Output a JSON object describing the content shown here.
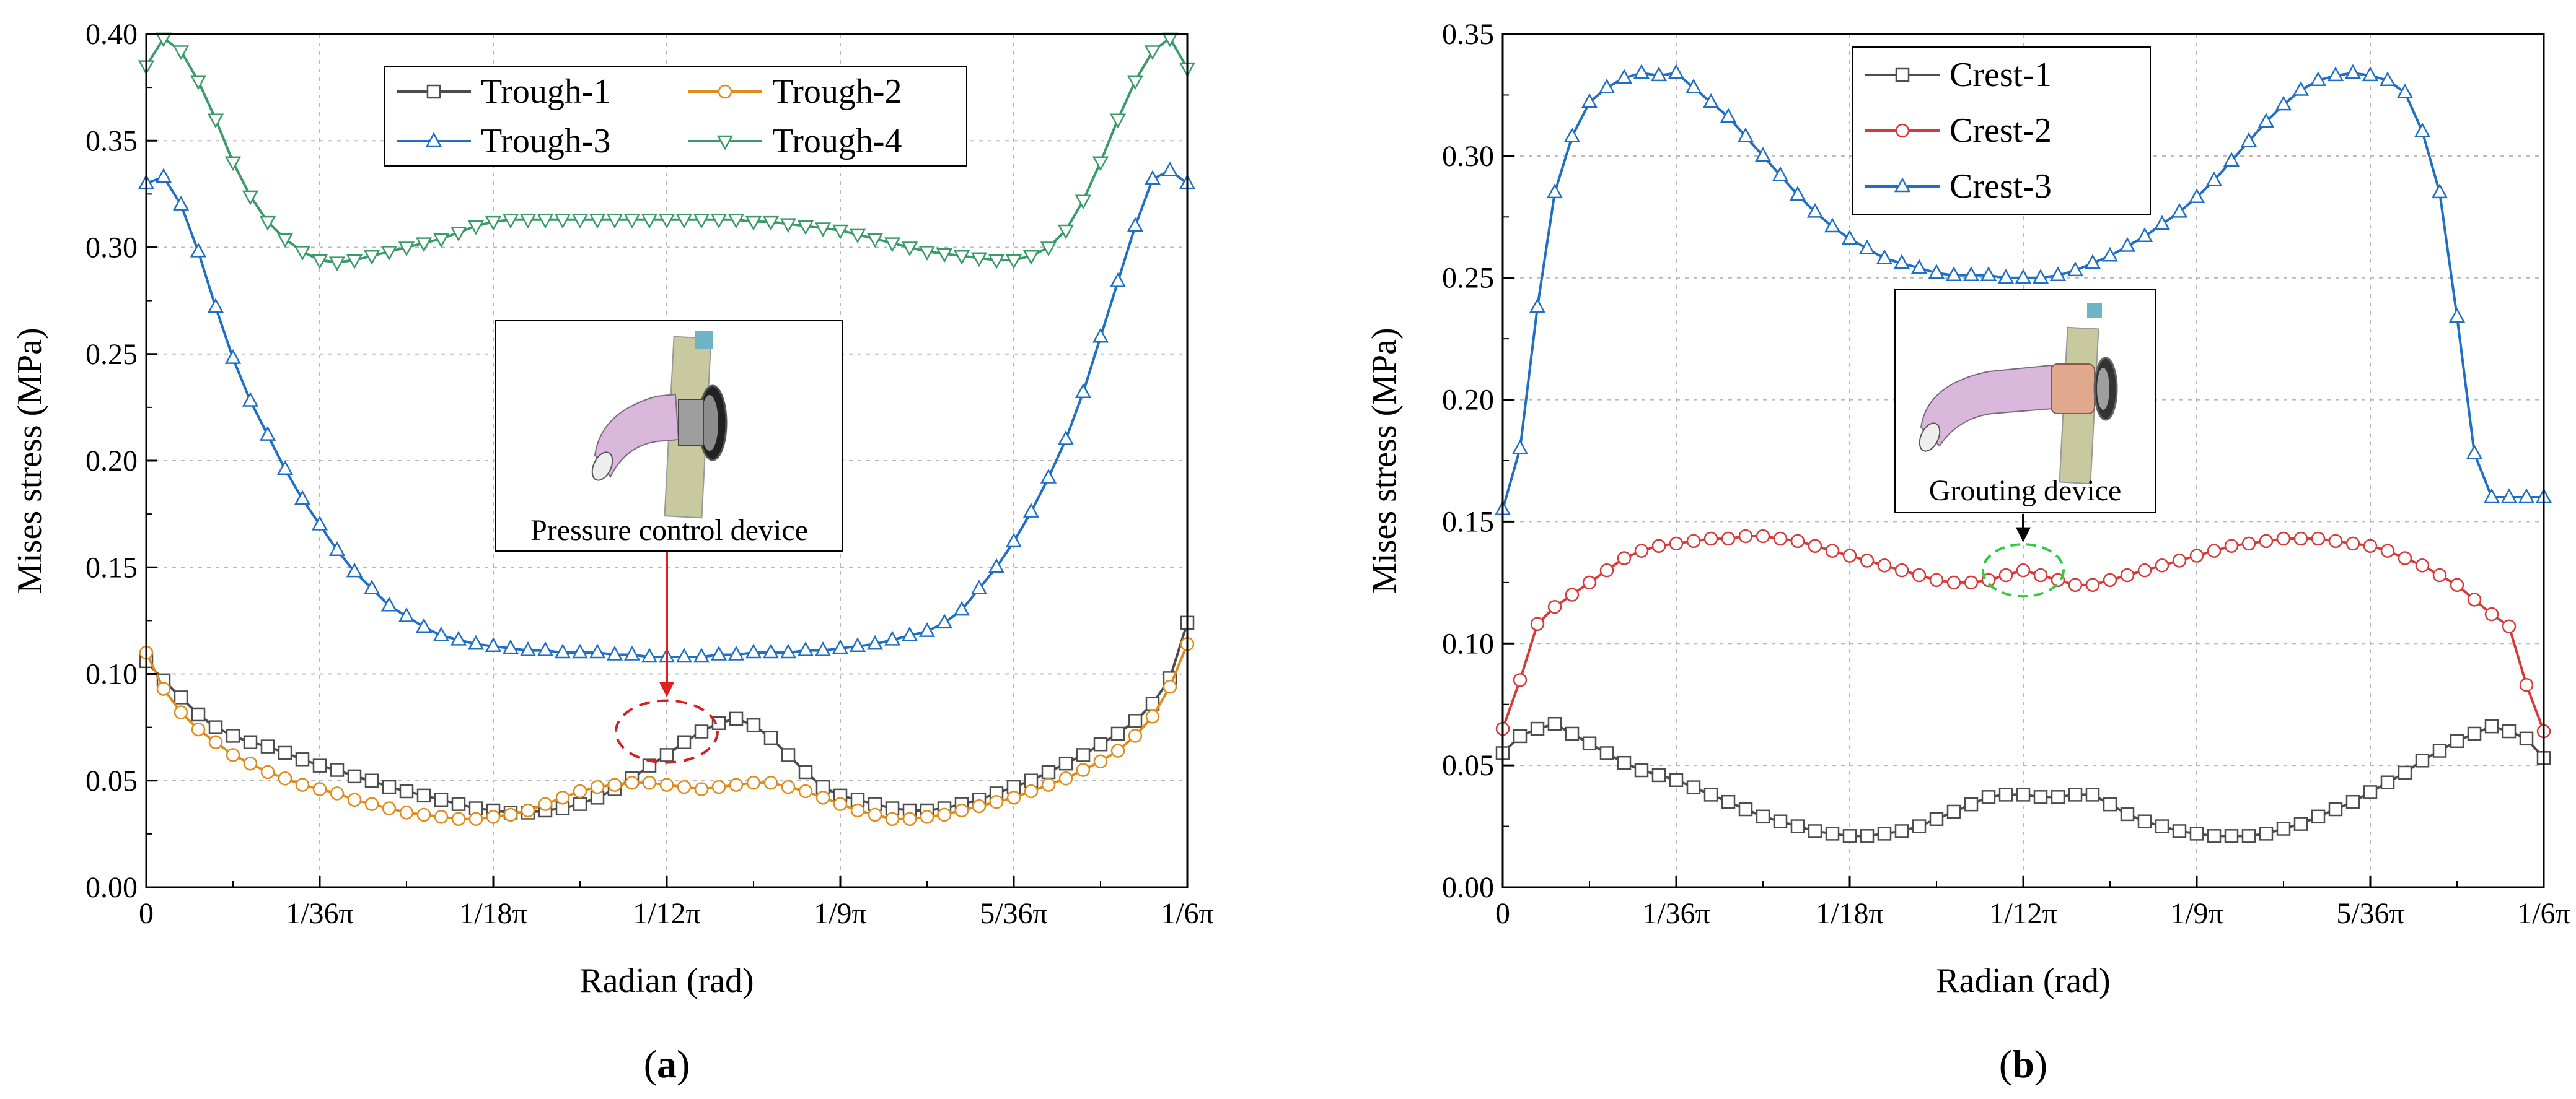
{
  "figure": {
    "panels": [
      "a",
      "b"
    ]
  },
  "chart_data": [
    {
      "type": "line",
      "panel_label": "a",
      "xlabel": "Radian (rad)",
      "ylabel": "Mises stress (MPa)",
      "xlim": [
        0,
        60
      ],
      "ylim": [
        0,
        0.4
      ],
      "x_ticks": [
        0,
        10,
        20,
        30,
        40,
        50,
        60
      ],
      "x_tick_labels": [
        "0",
        "1/36π",
        "1/18π",
        "1/12π",
        "1/9π",
        "5/36π",
        "1/6π"
      ],
      "y_ticks": [
        0,
        0.05,
        0.1,
        0.15,
        0.2,
        0.25,
        0.3,
        0.35,
        0.4
      ],
      "y_tick_labels": [
        "0.00",
        "0.05",
        "0.10",
        "0.15",
        "0.20",
        "0.25",
        "0.30",
        "0.35",
        "0.40"
      ],
      "grid": true,
      "legend_position": "top-center",
      "legend_columns": 2,
      "annotation": {
        "text": "Pressure control device",
        "points_to_x": 30,
        "points_to_y": 0.073,
        "arrow_color": "#e02020",
        "ellipse_color": "#d32020"
      },
      "series": [
        {
          "name": "Trough-1",
          "color": "#4d4d4d",
          "marker": "square",
          "x": [
            0,
            1,
            2,
            3,
            4,
            5,
            6,
            7,
            8,
            9,
            10,
            11,
            12,
            13,
            14,
            15,
            16,
            17,
            18,
            19,
            20,
            21,
            22,
            23,
            24,
            25,
            26,
            27,
            28,
            29,
            30,
            31,
            32,
            33,
            34,
            35,
            36,
            37,
            38,
            39,
            40,
            41,
            42,
            43,
            44,
            45,
            46,
            47,
            48,
            49,
            50,
            51,
            52,
            53,
            54,
            55,
            56,
            57,
            58,
            59,
            60
          ],
          "values": [
            0.106,
            0.097,
            0.089,
            0.081,
            0.075,
            0.071,
            0.068,
            0.066,
            0.063,
            0.06,
            0.057,
            0.055,
            0.052,
            0.05,
            0.047,
            0.045,
            0.043,
            0.041,
            0.039,
            0.037,
            0.036,
            0.035,
            0.035,
            0.036,
            0.037,
            0.039,
            0.042,
            0.046,
            0.051,
            0.057,
            0.062,
            0.068,
            0.073,
            0.077,
            0.079,
            0.076,
            0.07,
            0.062,
            0.054,
            0.047,
            0.043,
            0.041,
            0.039,
            0.037,
            0.036,
            0.036,
            0.037,
            0.039,
            0.041,
            0.044,
            0.047,
            0.05,
            0.054,
            0.058,
            0.062,
            0.067,
            0.072,
            0.078,
            0.086,
            0.098,
            0.124
          ]
        },
        {
          "name": "Trough-2",
          "color": "#e08c1a",
          "marker": "circle",
          "x": [
            0,
            1,
            2,
            3,
            4,
            5,
            6,
            7,
            8,
            9,
            10,
            11,
            12,
            13,
            14,
            15,
            16,
            17,
            18,
            19,
            20,
            21,
            22,
            23,
            24,
            25,
            26,
            27,
            28,
            29,
            30,
            31,
            32,
            33,
            34,
            35,
            36,
            37,
            38,
            39,
            40,
            41,
            42,
            43,
            44,
            45,
            46,
            47,
            48,
            49,
            50,
            51,
            52,
            53,
            54,
            55,
            56,
            57,
            58,
            59,
            60
          ],
          "values": [
            0.11,
            0.093,
            0.082,
            0.074,
            0.068,
            0.062,
            0.058,
            0.054,
            0.051,
            0.048,
            0.046,
            0.044,
            0.041,
            0.039,
            0.037,
            0.035,
            0.034,
            0.033,
            0.032,
            0.032,
            0.033,
            0.034,
            0.036,
            0.039,
            0.042,
            0.045,
            0.047,
            0.048,
            0.049,
            0.049,
            0.048,
            0.047,
            0.046,
            0.047,
            0.048,
            0.049,
            0.049,
            0.047,
            0.045,
            0.042,
            0.039,
            0.036,
            0.034,
            0.032,
            0.032,
            0.033,
            0.034,
            0.036,
            0.038,
            0.04,
            0.042,
            0.045,
            0.048,
            0.051,
            0.055,
            0.059,
            0.064,
            0.071,
            0.08,
            0.094,
            0.114
          ]
        },
        {
          "name": "Trough-3",
          "color": "#1f6fc5",
          "marker": "triangle-up",
          "x": [
            0,
            1,
            2,
            3,
            4,
            5,
            6,
            7,
            8,
            9,
            10,
            11,
            12,
            13,
            14,
            15,
            16,
            17,
            18,
            19,
            20,
            21,
            22,
            23,
            24,
            25,
            26,
            27,
            28,
            29,
            30,
            31,
            32,
            33,
            34,
            35,
            36,
            37,
            38,
            39,
            40,
            41,
            42,
            43,
            44,
            45,
            46,
            47,
            48,
            49,
            50,
            51,
            52,
            53,
            54,
            55,
            56,
            57,
            58,
            59,
            60
          ],
          "values": [
            0.33,
            0.333,
            0.32,
            0.298,
            0.272,
            0.248,
            0.228,
            0.212,
            0.196,
            0.182,
            0.17,
            0.158,
            0.148,
            0.14,
            0.132,
            0.127,
            0.122,
            0.118,
            0.116,
            0.114,
            0.113,
            0.112,
            0.111,
            0.111,
            0.11,
            0.11,
            0.11,
            0.109,
            0.109,
            0.108,
            0.108,
            0.108,
            0.108,
            0.109,
            0.109,
            0.11,
            0.11,
            0.11,
            0.111,
            0.111,
            0.112,
            0.113,
            0.114,
            0.116,
            0.118,
            0.12,
            0.124,
            0.13,
            0.14,
            0.15,
            0.162,
            0.176,
            0.192,
            0.21,
            0.232,
            0.258,
            0.284,
            0.31,
            0.332,
            0.336,
            0.33
          ]
        },
        {
          "name": "Trough-4",
          "color": "#3a9a6a",
          "marker": "triangle-down",
          "x": [
            0,
            1,
            2,
            3,
            4,
            5,
            6,
            7,
            8,
            9,
            10,
            11,
            12,
            13,
            14,
            15,
            16,
            17,
            18,
            19,
            20,
            21,
            22,
            23,
            24,
            25,
            26,
            27,
            28,
            29,
            30,
            31,
            32,
            33,
            34,
            35,
            36,
            37,
            38,
            39,
            40,
            41,
            42,
            43,
            44,
            45,
            46,
            47,
            48,
            49,
            50,
            51,
            52,
            53,
            54,
            55,
            56,
            57,
            58,
            59,
            60
          ],
          "values": [
            0.385,
            0.398,
            0.392,
            0.378,
            0.36,
            0.34,
            0.324,
            0.312,
            0.304,
            0.298,
            0.294,
            0.293,
            0.294,
            0.296,
            0.298,
            0.3,
            0.302,
            0.304,
            0.307,
            0.31,
            0.312,
            0.313,
            0.313,
            0.313,
            0.313,
            0.313,
            0.313,
            0.313,
            0.313,
            0.313,
            0.313,
            0.313,
            0.313,
            0.313,
            0.313,
            0.312,
            0.312,
            0.311,
            0.31,
            0.309,
            0.308,
            0.306,
            0.304,
            0.302,
            0.3,
            0.298,
            0.297,
            0.296,
            0.295,
            0.294,
            0.294,
            0.296,
            0.3,
            0.308,
            0.322,
            0.34,
            0.36,
            0.378,
            0.392,
            0.398,
            0.384
          ]
        }
      ]
    },
    {
      "type": "line",
      "panel_label": "b",
      "xlabel": "Radian (rad)",
      "ylabel": "Mises stress (MPa)",
      "xlim": [
        0,
        60
      ],
      "ylim": [
        0,
        0.35
      ],
      "x_ticks": [
        0,
        10,
        20,
        30,
        40,
        50,
        60
      ],
      "x_tick_labels": [
        "0",
        "1/36π",
        "1/18π",
        "1/12π",
        "1/9π",
        "5/36π",
        "1/6π"
      ],
      "y_ticks": [
        0,
        0.05,
        0.1,
        0.15,
        0.2,
        0.25,
        0.3,
        0.35
      ],
      "y_tick_labels": [
        "0.00",
        "0.05",
        "0.10",
        "0.15",
        "0.20",
        "0.25",
        "0.30",
        "0.35"
      ],
      "grid": true,
      "legend_position": "top-left",
      "legend_columns": 1,
      "annotation": {
        "text": "Grouting device",
        "points_to_x": 30,
        "points_to_y": 0.13,
        "arrow_color": "#000000",
        "ellipse_color": "#2ecc40"
      },
      "series": [
        {
          "name": "Crest-1",
          "color": "#4d4d4d",
          "marker": "square",
          "x": [
            0,
            1,
            2,
            3,
            4,
            5,
            6,
            7,
            8,
            9,
            10,
            11,
            12,
            13,
            14,
            15,
            16,
            17,
            18,
            19,
            20,
            21,
            22,
            23,
            24,
            25,
            26,
            27,
            28,
            29,
            30,
            31,
            32,
            33,
            34,
            35,
            36,
            37,
            38,
            39,
            40,
            41,
            42,
            43,
            44,
            45,
            46,
            47,
            48,
            49,
            50,
            51,
            52,
            53,
            54,
            55,
            56,
            57,
            58,
            59,
            60
          ],
          "values": [
            0.055,
            0.062,
            0.065,
            0.067,
            0.063,
            0.059,
            0.055,
            0.051,
            0.048,
            0.046,
            0.044,
            0.041,
            0.038,
            0.035,
            0.032,
            0.029,
            0.027,
            0.025,
            0.023,
            0.022,
            0.021,
            0.021,
            0.022,
            0.023,
            0.025,
            0.028,
            0.031,
            0.034,
            0.037,
            0.038,
            0.038,
            0.037,
            0.037,
            0.038,
            0.038,
            0.034,
            0.03,
            0.027,
            0.025,
            0.023,
            0.022,
            0.021,
            0.021,
            0.021,
            0.022,
            0.024,
            0.026,
            0.029,
            0.032,
            0.035,
            0.039,
            0.043,
            0.047,
            0.052,
            0.056,
            0.06,
            0.063,
            0.066,
            0.064,
            0.061,
            0.053
          ]
        },
        {
          "name": "Crest-2",
          "color": "#d73a3a",
          "marker": "circle",
          "x": [
            0,
            1,
            2,
            3,
            4,
            5,
            6,
            7,
            8,
            9,
            10,
            11,
            12,
            13,
            14,
            15,
            16,
            17,
            18,
            19,
            20,
            21,
            22,
            23,
            24,
            25,
            26,
            27,
            28,
            29,
            30,
            31,
            32,
            33,
            34,
            35,
            36,
            37,
            38,
            39,
            40,
            41,
            42,
            43,
            44,
            45,
            46,
            47,
            48,
            49,
            50,
            51,
            52,
            53,
            54,
            55,
            56,
            57,
            58,
            59,
            60
          ],
          "values": [
            0.065,
            0.085,
            0.108,
            0.115,
            0.12,
            0.125,
            0.13,
            0.135,
            0.138,
            0.14,
            0.141,
            0.142,
            0.143,
            0.143,
            0.144,
            0.144,
            0.143,
            0.142,
            0.14,
            0.138,
            0.136,
            0.134,
            0.132,
            0.13,
            0.128,
            0.126,
            0.125,
            0.125,
            0.126,
            0.128,
            0.13,
            0.128,
            0.126,
            0.124,
            0.124,
            0.126,
            0.128,
            0.13,
            0.132,
            0.134,
            0.136,
            0.138,
            0.14,
            0.141,
            0.142,
            0.143,
            0.143,
            0.143,
            0.142,
            0.141,
            0.14,
            0.138,
            0.135,
            0.132,
            0.128,
            0.124,
            0.118,
            0.112,
            0.107,
            0.083,
            0.064
          ]
        },
        {
          "name": "Crest-3",
          "color": "#1f6fc5",
          "marker": "triangle-up",
          "x": [
            0,
            1,
            2,
            3,
            4,
            5,
            6,
            7,
            8,
            9,
            10,
            11,
            12,
            13,
            14,
            15,
            16,
            17,
            18,
            19,
            20,
            21,
            22,
            23,
            24,
            25,
            26,
            27,
            28,
            29,
            30,
            31,
            32,
            33,
            34,
            35,
            36,
            37,
            38,
            39,
            40,
            41,
            42,
            43,
            44,
            45,
            46,
            47,
            48,
            49,
            50,
            51,
            52,
            53,
            54,
            55,
            56,
            57,
            58,
            59,
            60
          ],
          "values": [
            0.155,
            0.18,
            0.238,
            0.285,
            0.308,
            0.322,
            0.328,
            0.332,
            0.334,
            0.333,
            0.334,
            0.328,
            0.322,
            0.316,
            0.308,
            0.3,
            0.292,
            0.284,
            0.277,
            0.271,
            0.266,
            0.262,
            0.258,
            0.256,
            0.254,
            0.252,
            0.251,
            0.251,
            0.251,
            0.25,
            0.25,
            0.25,
            0.251,
            0.253,
            0.256,
            0.259,
            0.263,
            0.267,
            0.272,
            0.277,
            0.283,
            0.29,
            0.298,
            0.306,
            0.314,
            0.321,
            0.327,
            0.331,
            0.333,
            0.334,
            0.333,
            0.331,
            0.326,
            0.31,
            0.285,
            0.234,
            0.178,
            0.16,
            0.16,
            0.16,
            0.16
          ]
        }
      ]
    }
  ]
}
